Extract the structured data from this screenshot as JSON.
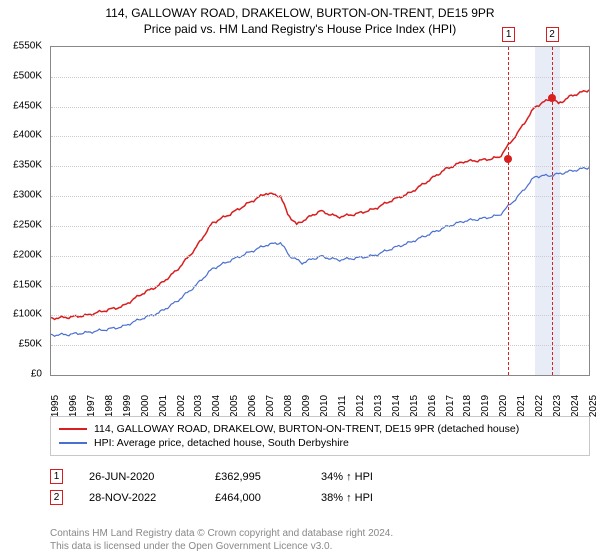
{
  "header": {
    "title_line1": "114, GALLOWAY ROAD, DRAKELOW, BURTON-ON-TRENT, DE15 9PR",
    "title_line2": "Price paid vs. HM Land Registry's House Price Index (HPI)"
  },
  "chart": {
    "type": "line",
    "background_color": "#ffffff",
    "grid_color": "#cccccc",
    "border_color": "#888888",
    "y_axis": {
      "min": 0,
      "max": 550000,
      "tick_step": 50000,
      "ticks": [
        "£0",
        "£50K",
        "£100K",
        "£150K",
        "£200K",
        "£250K",
        "£300K",
        "£350K",
        "£400K",
        "£450K",
        "£500K",
        "£550K"
      ]
    },
    "x_axis": {
      "min": 1995,
      "max": 2025,
      "ticks": [
        1995,
        1996,
        1997,
        1998,
        1999,
        2000,
        2001,
        2002,
        2003,
        2004,
        2005,
        2006,
        2007,
        2008,
        2009,
        2010,
        2011,
        2012,
        2013,
        2014,
        2015,
        2016,
        2017,
        2018,
        2019,
        2020,
        2021,
        2022,
        2023,
        2024,
        2025
      ]
    },
    "series": [
      {
        "name": "property",
        "label": "114, GALLOWAY ROAD, DRAKELOW, BURTON-ON-TRENT, DE15 9PR (detached house)",
        "color": "#d81e1e",
        "line_width": 1.5,
        "points": [
          [
            1995,
            95000
          ],
          [
            1996,
            97000
          ],
          [
            1997,
            100000
          ],
          [
            1998,
            108000
          ],
          [
            1999,
            115000
          ],
          [
            2000,
            135000
          ],
          [
            2001,
            150000
          ],
          [
            2002,
            175000
          ],
          [
            2003,
            210000
          ],
          [
            2004,
            255000
          ],
          [
            2005,
            270000
          ],
          [
            2006,
            288000
          ],
          [
            2007,
            305000
          ],
          [
            2007.8,
            300000
          ],
          [
            2008.2,
            270000
          ],
          [
            2008.7,
            252000
          ],
          [
            2009,
            258000
          ],
          [
            2010,
            275000
          ],
          [
            2011,
            265000
          ],
          [
            2012,
            270000
          ],
          [
            2013,
            278000
          ],
          [
            2014,
            293000
          ],
          [
            2015,
            305000
          ],
          [
            2016,
            325000
          ],
          [
            2017,
            345000
          ],
          [
            2018,
            358000
          ],
          [
            2019,
            360000
          ],
          [
            2020,
            365000
          ],
          [
            2021,
            405000
          ],
          [
            2022,
            450000
          ],
          [
            2022.9,
            464000
          ],
          [
            2023.3,
            455000
          ],
          [
            2024,
            468000
          ],
          [
            2025,
            478000
          ]
        ]
      },
      {
        "name": "hpi",
        "label": "HPI: Average price, detached house, South Derbyshire",
        "color": "#4a6fd0",
        "line_width": 1.2,
        "points": [
          [
            1995,
            67000
          ],
          [
            1996,
            68000
          ],
          [
            1997,
            71000
          ],
          [
            1998,
            76000
          ],
          [
            1999,
            81000
          ],
          [
            2000,
            94000
          ],
          [
            2001,
            104000
          ],
          [
            2002,
            123000
          ],
          [
            2003,
            148000
          ],
          [
            2004,
            178000
          ],
          [
            2005,
            192000
          ],
          [
            2006,
            205000
          ],
          [
            2007,
            218000
          ],
          [
            2007.8,
            222000
          ],
          [
            2008.3,
            200000
          ],
          [
            2009,
            188000
          ],
          [
            2010,
            199000
          ],
          [
            2011,
            193000
          ],
          [
            2012,
            196000
          ],
          [
            2013,
            200000
          ],
          [
            2014,
            212000
          ],
          [
            2015,
            222000
          ],
          [
            2016,
            235000
          ],
          [
            2017,
            248000
          ],
          [
            2018,
            258000
          ],
          [
            2019,
            262000
          ],
          [
            2020,
            268000
          ],
          [
            2021,
            298000
          ],
          [
            2022,
            333000
          ],
          [
            2023,
            335000
          ],
          [
            2024,
            342000
          ],
          [
            2025,
            348000
          ]
        ]
      }
    ],
    "markers": [
      {
        "id": "1",
        "x": 2020.49,
        "y": 362995,
        "color": "#d81e1e"
      },
      {
        "id": "2",
        "x": 2022.91,
        "y": 464000,
        "color": "#d81e1e"
      }
    ],
    "highlight_band": {
      "from": 2022.0,
      "to": 2023.4,
      "color": "#e8ecf7"
    }
  },
  "legend": {
    "rows": [
      {
        "color": "#d81e1e",
        "label": "114, GALLOWAY ROAD, DRAKELOW, BURTON-ON-TRENT, DE15 9PR (detached house)"
      },
      {
        "color": "#4a6fd0",
        "label": "HPI: Average price, detached house, South Derbyshire"
      }
    ]
  },
  "sales": [
    {
      "marker": "1",
      "marker_color": "#d81e1e",
      "date": "26-JUN-2020",
      "price": "£362,995",
      "pct": "34% ↑ HPI"
    },
    {
      "marker": "2",
      "marker_color": "#d81e1e",
      "date": "28-NOV-2022",
      "price": "£464,000",
      "pct": "38% ↑ HPI"
    }
  ],
  "footnote": {
    "line1": "Contains HM Land Registry data © Crown copyright and database right 2024.",
    "line2": "This data is licensed under the Open Government Licence v3.0."
  }
}
